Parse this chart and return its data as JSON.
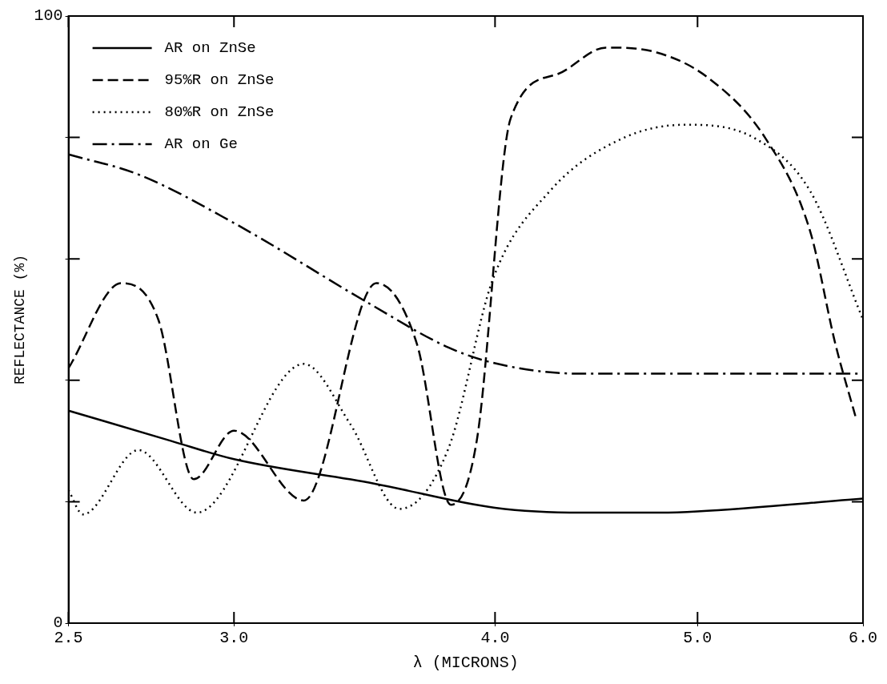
{
  "chart_data": {
    "type": "line",
    "xlabel": "λ (MICRONS)",
    "ylabel": "REFLECTANCE (%)",
    "xlim": [
      2.5,
      6.0
    ],
    "xticks": [
      2.5,
      {
        "value": 3.0,
        "label": "3.0"
      },
      {
        "value": 4.0,
        "label": "4.0"
      },
      {
        "value": 5.0,
        "label": "5.0"
      },
      {
        "value": 6.0,
        "label": "6.0"
      }
    ],
    "ylim": [
      0,
      100
    ],
    "yticks": [
      0,
      {
        "value": 20,
        "label": null
      },
      {
        "value": 40,
        "label": null
      },
      {
        "value": 60,
        "label": null
      },
      {
        "value": 80,
        "label": null
      },
      100
    ],
    "grid": false,
    "legend": "top left",
    "marker": "none",
    "log": "x",
    "series": [
      {
        "name": "AR on ZnSe",
        "color": "#000000",
        "line_style": "solid",
        "x": [
          2.5,
          2.8,
          3.0,
          3.5,
          4.0,
          4.4,
          4.8,
          5.0,
          6.0
        ],
        "values": [
          35,
          30,
          27,
          23,
          19,
          18.2,
          18.2,
          18.4,
          20.5
        ]
      },
      {
        "name": "95%R on ZnSe",
        "color": "#000000",
        "line_style": "dashed",
        "x": [
          2.5,
          2.65,
          2.76,
          2.87,
          3.0,
          3.24,
          3.51,
          3.67,
          3.81,
          3.92,
          4.07,
          4.29,
          4.52,
          4.78,
          5.06,
          5.39,
          5.66,
          5.82,
          5.95
        ],
        "values": [
          42,
          56,
          50,
          23.7,
          31.7,
          20.2,
          56,
          46,
          19.5,
          30,
          83.2,
          90.5,
          94.8,
          94,
          89.8,
          79.8,
          64.6,
          46,
          34.1
        ]
      },
      {
        "name": "80%R on ZnSe",
        "color": "#000000",
        "line_style": "dotted",
        "x": [
          2.5,
          2.54,
          2.7,
          2.88,
          3.24,
          3.41,
          3.6,
          3.8,
          3.99,
          4.25,
          4.6,
          4.94,
          5.33,
          5.66,
          6.0
        ],
        "values": [
          21.9,
          17.9,
          28.5,
          18.2,
          42.7,
          32.8,
          18.8,
          28.8,
          56.6,
          71.2,
          79.8,
          82.1,
          79.8,
          71.2,
          50
        ]
      },
      {
        "name": "AR on Ge",
        "color": "#000000",
        "line_style": "dashdot",
        "x": [
          2.5,
          2.7,
          3.0,
          3.48,
          3.8,
          4.0,
          4.38,
          5.0,
          6.0
        ],
        "values": [
          77.2,
          73.9,
          65.9,
          52.7,
          45.4,
          42.8,
          41.1,
          41.1,
          41.1
        ]
      }
    ]
  }
}
